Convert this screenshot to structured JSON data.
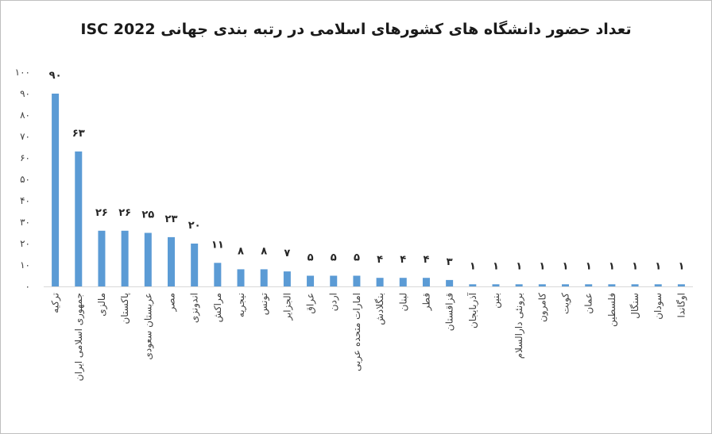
{
  "chart_data": {
    "type": "bar",
    "title": "تعداد حضور دانشگاه های کشورهای اسلامی در رتبه بندی جهانی ISC 2022",
    "xlabel": "",
    "ylabel": "",
    "ylim": [
      0,
      100
    ],
    "yticks": [
      "۰",
      "۱۰",
      "۲۰",
      "۳۰",
      "۴۰",
      "۵۰",
      "۶۰",
      "۷۰",
      "۸۰",
      "۹۰",
      "۱۰۰"
    ],
    "grid": false,
    "legend": "none",
    "bar_color": "#5b9bd5",
    "categories": [
      "ترکیه",
      "جمهوری اسلامی ایران",
      "مالزی",
      "پاکستان",
      "عربستان سعودی",
      "مصر",
      "اندونزی",
      "مراکش",
      "نیجریه",
      "تونس",
      "الجزایر",
      "عراق",
      "اردن",
      "امارات متحده عربی",
      "بنگلادش",
      "لبنان",
      "قطر",
      "قزاقستان",
      "آذربایجان",
      "بنین",
      "برونئی دارالسلام",
      "کامرون",
      "کویت",
      "عمان",
      "فلسطین",
      "سنگال",
      "سودان",
      "اوگاندا"
    ],
    "values": [
      90,
      63,
      26,
      26,
      25,
      23,
      20,
      11,
      8,
      8,
      7,
      5,
      5,
      5,
      4,
      4,
      4,
      3,
      1,
      1,
      1,
      1,
      1,
      1,
      1,
      1,
      1,
      1
    ],
    "data_labels": [
      "۹۰",
      "۶۳",
      "۲۶",
      "۲۶",
      "۲۵",
      "۲۳",
      "۲۰",
      "۱۱",
      "۸",
      "۸",
      "۷",
      "۵",
      "۵",
      "۵",
      "۴",
      "۴",
      "۴",
      "۳",
      "۱",
      "۱",
      "۱",
      "۱",
      "۱",
      "۱",
      "۱",
      "۱",
      "۱",
      "۱"
    ]
  }
}
